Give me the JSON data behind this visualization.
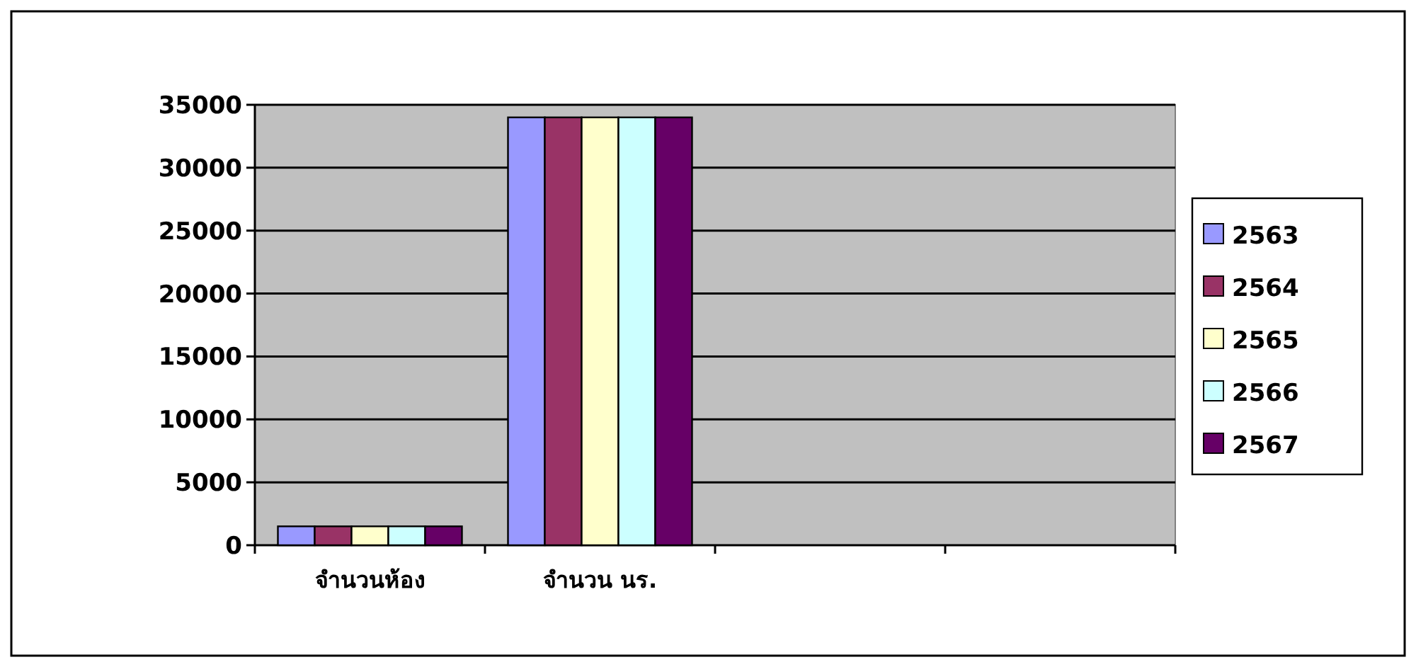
{
  "chart_data": {
    "type": "bar",
    "categories": [
      "จำนวนห้อง",
      "จำนวน นร.",
      null,
      null
    ],
    "series": [
      {
        "name": "2563",
        "color": "#9999ff",
        "values": [
          1500,
          34000,
          null,
          null
        ]
      },
      {
        "name": "2564",
        "color": "#993366",
        "values": [
          1500,
          34000,
          null,
          null
        ]
      },
      {
        "name": "2565",
        "color": "#ffffcc",
        "values": [
          1500,
          34000,
          null,
          null
        ]
      },
      {
        "name": "2566",
        "color": "#ccffff",
        "values": [
          1500,
          34000,
          null,
          null
        ]
      },
      {
        "name": "2567",
        "color": "#660066",
        "values": [
          1500,
          34000,
          null,
          null
        ]
      }
    ],
    "ylim": [
      0,
      35000
    ],
    "yticks": [
      0,
      5000,
      10000,
      15000,
      20000,
      25000,
      30000,
      35000
    ],
    "grid": "y",
    "legend": "right"
  }
}
